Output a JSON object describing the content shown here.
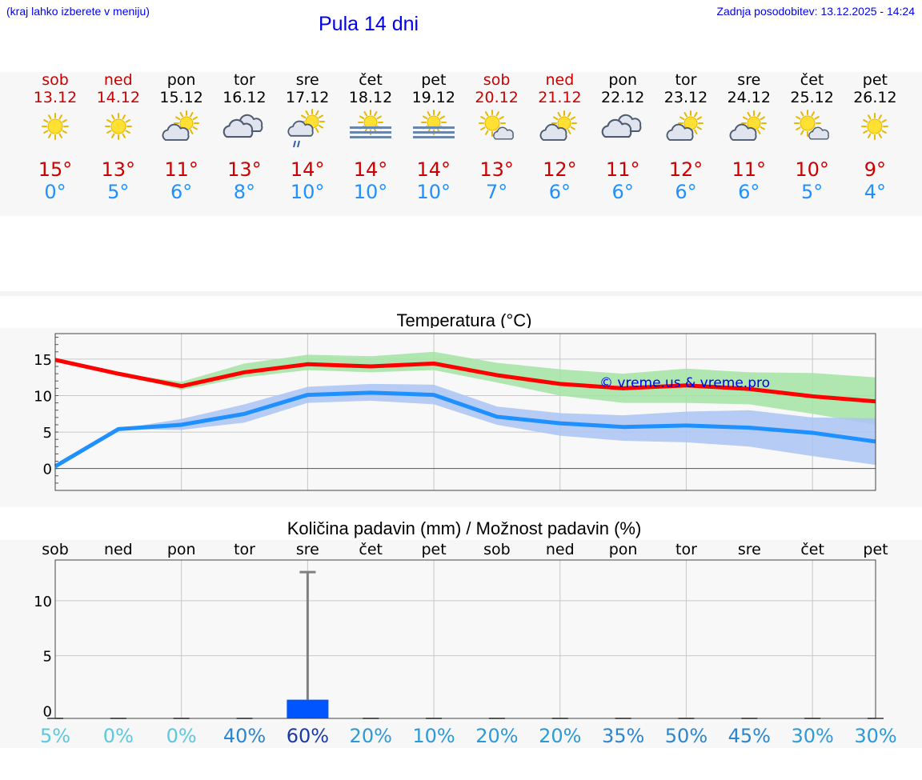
{
  "header": {
    "subtitle": "(kraj lahko izberete v meniju)",
    "title": "Pula 14 dni",
    "updated": "Zadnja posodobitev: 13.12.2025 - 14:24"
  },
  "colors": {
    "link": "#0000ee",
    "weekend": "#cc0000",
    "weekday": "#000000",
    "tmax": "#cc0000",
    "tmin": "#1e90ff"
  },
  "days": [
    {
      "name": "sob",
      "date": "13.12",
      "weekend": true,
      "icon": "sun-icon",
      "tmax": "15°",
      "tmin": "0°"
    },
    {
      "name": "ned",
      "date": "14.12",
      "weekend": true,
      "icon": "sun-icon",
      "tmax": "13°",
      "tmin": "5°"
    },
    {
      "name": "pon",
      "date": "15.12",
      "weekend": false,
      "icon": "partly-cloudy-icon",
      "tmax": "11°",
      "tmin": "6°"
    },
    {
      "name": "tor",
      "date": "16.12",
      "weekend": false,
      "icon": "cloudy-icon",
      "tmax": "13°",
      "tmin": "8°"
    },
    {
      "name": "sre",
      "date": "17.12",
      "weekend": false,
      "icon": "showers-icon",
      "tmax": "14°",
      "tmin": "10°"
    },
    {
      "name": "čet",
      "date": "18.12",
      "weekend": false,
      "icon": "fog-sun-icon",
      "tmax": "14°",
      "tmin": "10°"
    },
    {
      "name": "pet",
      "date": "19.12",
      "weekend": false,
      "icon": "fog-sun-icon",
      "tmax": "14°",
      "tmin": "10°"
    },
    {
      "name": "sob",
      "date": "20.12",
      "weekend": true,
      "icon": "sun-small-cloud-icon",
      "tmax": "13°",
      "tmin": "7°"
    },
    {
      "name": "ned",
      "date": "21.12",
      "weekend": true,
      "icon": "partly-cloudy-icon",
      "tmax": "12°",
      "tmin": "6°"
    },
    {
      "name": "pon",
      "date": "22.12",
      "weekend": false,
      "icon": "cloudy-icon",
      "tmax": "11°",
      "tmin": "6°"
    },
    {
      "name": "tor",
      "date": "23.12",
      "weekend": false,
      "icon": "partly-cloudy-icon",
      "tmax": "12°",
      "tmin": "6°"
    },
    {
      "name": "sre",
      "date": "24.12",
      "weekend": false,
      "icon": "partly-cloudy-icon",
      "tmax": "11°",
      "tmin": "6°"
    },
    {
      "name": "čet",
      "date": "25.12",
      "weekend": false,
      "icon": "sun-small-cloud-icon",
      "tmax": "10°",
      "tmin": "5°"
    },
    {
      "name": "pet",
      "date": "26.12",
      "weekend": false,
      "icon": "sun-icon",
      "tmax": "9°",
      "tmin": "4°"
    }
  ],
  "chart_data": [
    {
      "type": "line",
      "title": "Temperatura (°C)",
      "watermark": "© vreme.us & vreme.pro",
      "x": [
        0,
        1,
        2,
        3,
        4,
        5,
        6,
        7,
        8,
        9,
        10,
        11,
        12,
        13
      ],
      "ylim": [
        -3,
        18.5
      ],
      "yticks": [
        0,
        5,
        10,
        15
      ],
      "grid": true,
      "series": [
        {
          "name": "max",
          "color": "#ff0000",
          "values": [
            14.9,
            13.0,
            11.3,
            13.2,
            14.3,
            14.0,
            14.4,
            12.8,
            11.6,
            11.0,
            11.4,
            10.9,
            9.9,
            9.2
          ],
          "band_low": [
            14.9,
            13.0,
            10.8,
            12.5,
            13.5,
            13.2,
            13.5,
            11.8,
            10.0,
            9.0,
            9.0,
            8.8,
            7.5,
            6.0
          ],
          "band_high": [
            14.9,
            13.0,
            11.9,
            14.4,
            15.6,
            15.4,
            16.0,
            14.5,
            13.6,
            13.0,
            13.7,
            13.2,
            13.1,
            12.5
          ],
          "band_color": "#a3e4a3"
        },
        {
          "name": "min",
          "color": "#1e90ff",
          "values": [
            0.3,
            5.4,
            6.0,
            7.5,
            10.1,
            10.4,
            10.1,
            7.1,
            6.2,
            5.7,
            5.9,
            5.6,
            4.9,
            3.7
          ],
          "band_low": [
            0.3,
            5.4,
            5.3,
            6.3,
            9.0,
            9.3,
            8.8,
            6.0,
            4.5,
            3.8,
            3.6,
            3.0,
            1.7,
            0.5
          ],
          "band_high": [
            0.3,
            5.4,
            6.8,
            8.8,
            11.2,
            11.6,
            11.5,
            8.5,
            7.6,
            7.3,
            7.8,
            8.0,
            7.0,
            6.9
          ],
          "band_color": "#aac4f5"
        }
      ]
    },
    {
      "type": "bar",
      "title": "Količina padavin (mm) / Možnost padavin (%)",
      "categories": [
        "sob",
        "ned",
        "pon",
        "tor",
        "sre",
        "čet",
        "pet",
        "sob",
        "ned",
        "pon",
        "tor",
        "sre",
        "čet",
        "pet"
      ],
      "values": [
        0,
        0,
        0,
        0,
        1.0,
        0,
        0,
        0,
        0,
        0,
        0,
        0,
        0,
        0
      ],
      "error_high": [
        0,
        0,
        0,
        0,
        12.6,
        0,
        0,
        0,
        0,
        0,
        0,
        0,
        0,
        0
      ],
      "ylim": [
        -0.7,
        13.7
      ],
      "yticks": [
        0,
        5,
        10
      ],
      "bar_color": "#0055ff",
      "probabilities": [
        "5%",
        "0%",
        "0%",
        "40%",
        "60%",
        "20%",
        "10%",
        "20%",
        "20%",
        "35%",
        "50%",
        "45%",
        "30%",
        "30%"
      ],
      "probability_colors": [
        "#5ac8e0",
        "#5ac8e0",
        "#5ac8e0",
        "#2b86d2",
        "#1a3aa6",
        "#2b9ad8",
        "#2b9ad8",
        "#2b9ad8",
        "#2b9ad8",
        "#2b86d2",
        "#2b86d2",
        "#2b86d2",
        "#2b9ad8",
        "#2b9ad8"
      ]
    }
  ]
}
